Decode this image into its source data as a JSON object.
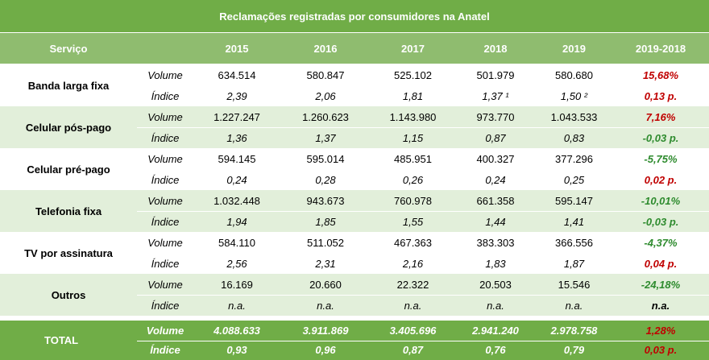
{
  "title": "Reclamações registradas por consumidores na Anatel",
  "header": {
    "service": "Serviço",
    "columns": [
      "2015",
      "2016",
      "2017",
      "2018",
      "2019",
      "2019-2018"
    ]
  },
  "rows": [
    {
      "service": "Banda larga fixa",
      "volume_label": "Volume",
      "volume": [
        "634.514",
        "580.847",
        "525.102",
        "501.979",
        "580.680",
        "15,68%"
      ],
      "index_label": "Índice",
      "index": [
        "2,39",
        "2,06",
        "1,81",
        "1,37 ¹",
        "1,50 ²",
        "0,13 p."
      ]
    },
    {
      "service": "Celular pós-pago",
      "volume_label": "Volume",
      "volume": [
        "1.227.247",
        "1.260.623",
        "1.143.980",
        "973.770",
        "1.043.533",
        "7,16%"
      ],
      "index_label": "Índice",
      "index": [
        "1,36",
        "1,37",
        "1,15",
        "0,87",
        "0,83",
        "-0,03 p."
      ]
    },
    {
      "service": "Celular pré-pago",
      "volume_label": "Volume",
      "volume": [
        "594.145",
        "595.014",
        "485.951",
        "400.327",
        "377.296",
        "-5,75%"
      ],
      "index_label": "Índice",
      "index": [
        "0,24",
        "0,28",
        "0,26",
        "0,24",
        "0,25",
        "0,02 p."
      ]
    },
    {
      "service": "Telefonia fixa",
      "volume_label": "Volume",
      "volume": [
        "1.032.448",
        "943.673",
        "760.978",
        "661.358",
        "595.147",
        "-10,01%"
      ],
      "index_label": "Índice",
      "index": [
        "1,94",
        "1,85",
        "1,55",
        "1,44",
        "1,41",
        "-0,03 p."
      ]
    },
    {
      "service": "TV por assinatura",
      "volume_label": "Volume",
      "volume": [
        "584.110",
        "511.052",
        "467.363",
        "383.303",
        "366.556",
        "-4,37%"
      ],
      "index_label": "Índice",
      "index": [
        "2,56",
        "2,31",
        "2,16",
        "1,83",
        "1,87",
        "0,04 p."
      ]
    },
    {
      "service": "Outros",
      "volume_label": "Volume",
      "volume": [
        "16.169",
        "20.660",
        "22.322",
        "20.503",
        "15.546",
        "-24,18%"
      ],
      "index_label": "Índice",
      "index": [
        "n.a.",
        "n.a.",
        "n.a.",
        "n.a.",
        "n.a.",
        "n.a."
      ]
    }
  ],
  "total": {
    "service": "TOTAL",
    "volume_label": "Volume",
    "volume": [
      "4.088.633",
      "3.911.869",
      "3.405.696",
      "2.941.240",
      "2.978.758",
      "1,28%"
    ],
    "index_label": "Índice",
    "index": [
      "0,93",
      "0,96",
      "0,87",
      "0,76",
      "0,79",
      "0,03 p."
    ]
  }
}
